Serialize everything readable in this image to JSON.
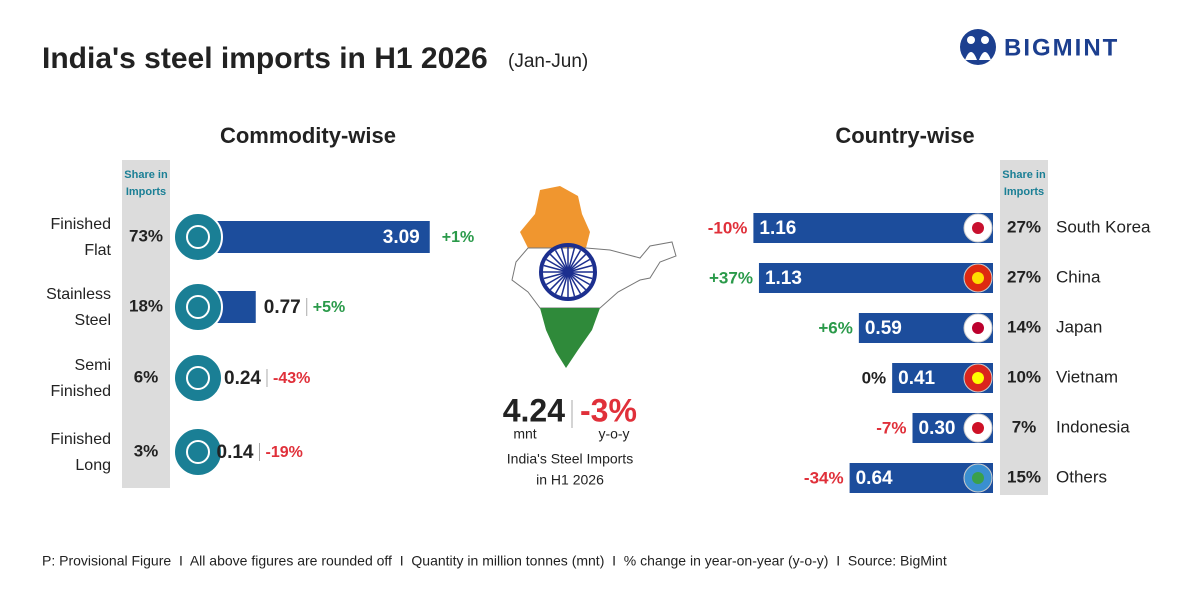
{
  "header": {
    "title": "India's steel imports in H1 2026",
    "subtitle": "(Jan-Jun)",
    "logo": "BIGMINT"
  },
  "chart_data": [
    {
      "type": "bar",
      "title": "Commodity-wise",
      "share_header": [
        "Share in",
        "Imports"
      ],
      "categories": [
        [
          "Finished",
          "Flat"
        ],
        [
          "Stainless",
          "Steel"
        ],
        [
          "Semi",
          "Finished"
        ],
        [
          "Finished",
          "Long"
        ]
      ],
      "values": [
        3.09,
        0.77,
        0.24,
        0.14
      ],
      "color": "#1c4d9c",
      "share": [
        73,
        18,
        6,
        3
      ],
      "share_labels": [
        "73%",
        "18%",
        "6%",
        "3%"
      ],
      "change": [
        1,
        5,
        -43,
        -19
      ],
      "change_labels": [
        "+1%",
        "+5%",
        "-43%",
        "-19%"
      ]
    },
    {
      "type": "bar",
      "title": "Country-wise",
      "share_header": [
        "Share in",
        "Imports"
      ],
      "categories": [
        "South Korea",
        "China",
        "Japan",
        "Vietnam",
        "Indonesia",
        "Others"
      ],
      "values": [
        1.16,
        1.13,
        0.59,
        0.41,
        0.3,
        0.64
      ],
      "value_labels": [
        "1.16",
        "1.13",
        "0.59",
        "0.41",
        "0.30",
        "0.64"
      ],
      "color": "#1c4d9c",
      "share": [
        27,
        27,
        14,
        10,
        7,
        15
      ],
      "share_labels": [
        "27%",
        "27%",
        "14%",
        "10%",
        "7%",
        "15%"
      ],
      "change": [
        -10,
        37,
        6,
        0,
        -7,
        -34
      ],
      "change_labels": [
        "-10%",
        "+37%",
        "+6%",
        "0%",
        "-7%",
        "-34%"
      ]
    }
  ],
  "summary": {
    "total": 4.24,
    "total_unit": "mnt",
    "change": -3,
    "change_label": "-3%",
    "change_unit": "y-o-y",
    "caption": [
      "India's Steel Imports",
      "in H1 2026"
    ]
  },
  "footer": "P: Provisional Figure  I  All above figures are rounded off  I  Quantity in million tonnes (mnt)  I  % change in year-on-year (y-o-y)  I  Source: BigMint"
}
